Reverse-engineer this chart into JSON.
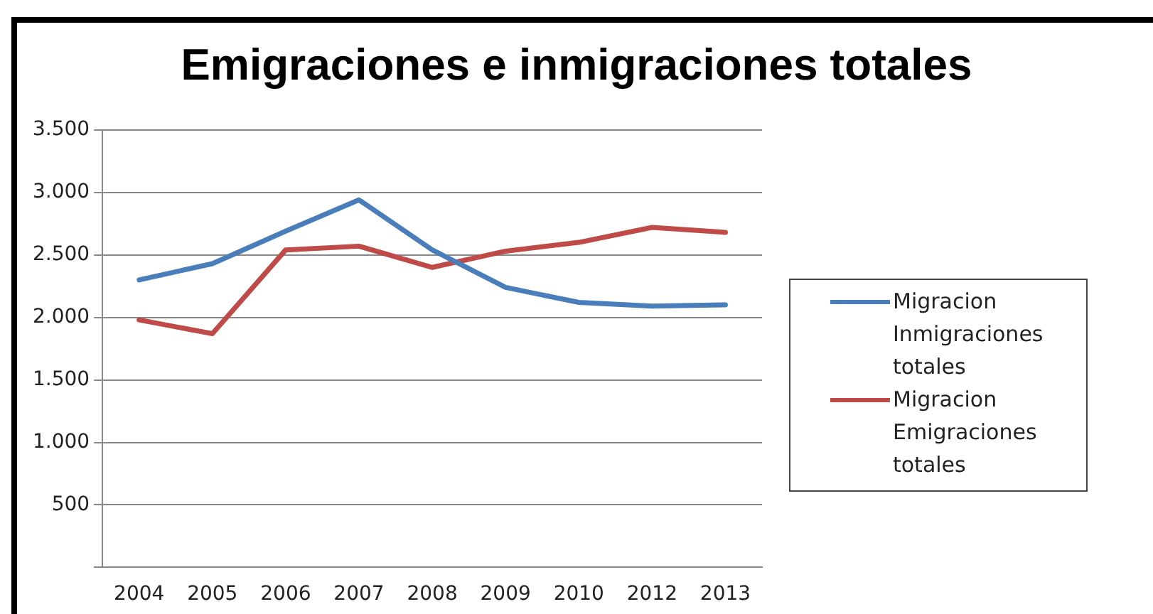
{
  "chart_data": {
    "type": "line",
    "title": "Emigraciones e inmigraciones totales",
    "categories": [
      "2004",
      "2005",
      "2006",
      "2007",
      "2008",
      "2009",
      "2010",
      "2012",
      "2013"
    ],
    "series": [
      {
        "name": "Migracion Inmigraciones totales",
        "color": "#4a7ebb",
        "values": [
          2300,
          2430,
          2690,
          2940,
          2540,
          2240,
          2120,
          2090,
          2100
        ]
      },
      {
        "name": "Migracion Emigraciones totales",
        "color": "#be4b48",
        "values": [
          1980,
          1870,
          2540,
          2570,
          2400,
          2530,
          2600,
          2720,
          2680
        ]
      }
    ],
    "ylim": [
      0,
      3500
    ],
    "yticks": [
      {
        "value": 0,
        "label": null
      },
      500,
      {
        "value": 1000,
        "label": "1.000"
      },
      {
        "value": 1500,
        "label": "1.500"
      },
      {
        "value": 2000,
        "label": "2.000"
      },
      {
        "value": 2500,
        "label": "2.500"
      },
      {
        "value": 3000,
        "label": "3.000"
      },
      {
        "value": 3500,
        "label": "3.500"
      }
    ],
    "grid": "y",
    "legend": "right",
    "marker": "none",
    "line_style": "solid"
  }
}
